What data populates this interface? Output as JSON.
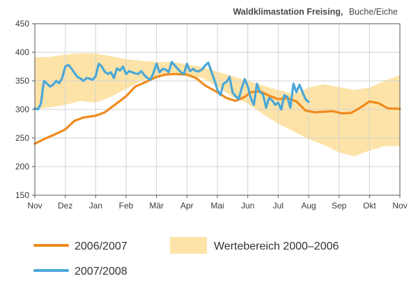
{
  "chart_data": {
    "type": "line",
    "title": "Waldklimastation Freising,",
    "subtitle": "Buche/Eiche",
    "xlabel": "",
    "ylabel": "",
    "ylim": [
      150,
      450
    ],
    "yticks": [
      "150",
      "200",
      "250",
      "300",
      "350",
      "400",
      "450"
    ],
    "xticks": [
      "Nov",
      "Dez",
      "Jan",
      "Feb",
      "Mär",
      "Apr",
      "Mai",
      "Jun",
      "Jul",
      "Aug",
      "Sep",
      "Okt",
      "Nov"
    ],
    "grid": true,
    "legend_position": "bottom",
    "colors": {
      "series_2006": "#f08a1c",
      "series_2007": "#4aa7d8",
      "band": "#fde3a7",
      "grid": "#d2d2d2",
      "axis": "#555555"
    },
    "band": {
      "name": "Wertebereich 2000–2006",
      "x": [
        0,
        0.5,
        1,
        1.5,
        2,
        2.5,
        3,
        3.5,
        4,
        4.5,
        5,
        5.5,
        6,
        6.5,
        7,
        7.5,
        8,
        8.5,
        9,
        9.5,
        10,
        10.5,
        11,
        11.5,
        12
      ],
      "upper": [
        391,
        392,
        396,
        398,
        398,
        393,
        388,
        385,
        383,
        383,
        379,
        374,
        366,
        358,
        350,
        342,
        334,
        327,
        338,
        344,
        339,
        334,
        338,
        350,
        360
      ],
      "lower": [
        300,
        304,
        308,
        315,
        312,
        322,
        336,
        350,
        358,
        362,
        360,
        355,
        340,
        322,
        310,
        292,
        275,
        262,
        248,
        238,
        225,
        218,
        228,
        236,
        236
      ]
    },
    "series": [
      {
        "name": "2006/2007",
        "x": [
          0,
          0.3,
          0.6,
          1.0,
          1.3,
          1.6,
          2.0,
          2.3,
          2.6,
          3.0,
          3.3,
          3.6,
          4.0,
          4.3,
          4.6,
          5.0,
          5.3,
          5.6,
          6.0,
          6.3,
          6.6,
          6.9,
          7.1,
          7.4,
          7.7,
          8.0,
          8.3,
          8.6,
          8.9,
          9.2,
          9.5,
          9.8,
          10.1,
          10.4,
          10.7,
          11.0,
          11.3,
          11.6,
          12.0
        ],
        "values": [
          240,
          248,
          255,
          265,
          280,
          286,
          289,
          295,
          307,
          323,
          340,
          347,
          357,
          361,
          362,
          361,
          355,
          342,
          330,
          320,
          315,
          322,
          330,
          332,
          324,
          318,
          320,
          314,
          298,
          295,
          296,
          297,
          293,
          294,
          303,
          314,
          311,
          302,
          301
        ]
      },
      {
        "name": "2007/2008",
        "x": [
          0,
          0.1,
          0.2,
          0.3,
          0.4,
          0.5,
          0.6,
          0.7,
          0.8,
          0.9,
          1.0,
          1.1,
          1.2,
          1.3,
          1.4,
          1.5,
          1.6,
          1.7,
          1.8,
          1.9,
          2.0,
          2.1,
          2.2,
          2.3,
          2.4,
          2.5,
          2.6,
          2.7,
          2.8,
          2.9,
          3.0,
          3.1,
          3.2,
          3.3,
          3.4,
          3.5,
          3.6,
          3.7,
          3.8,
          3.9,
          4.0,
          4.1,
          4.2,
          4.3,
          4.4,
          4.5,
          4.6,
          4.7,
          4.8,
          4.9,
          5.0,
          5.1,
          5.2,
          5.3,
          5.4,
          5.5,
          5.6,
          5.7,
          5.8,
          5.9,
          6.0,
          6.1,
          6.2,
          6.3,
          6.4,
          6.5,
          6.6,
          6.7,
          6.8,
          6.9,
          7.0,
          7.1,
          7.2,
          7.3,
          7.4,
          7.5,
          7.6,
          7.7,
          7.8,
          7.9,
          8.0,
          8.1,
          8.2,
          8.3,
          8.4,
          8.5,
          8.6,
          8.7,
          8.8,
          8.9,
          9.0
        ],
        "values": [
          302,
          300,
          310,
          350,
          345,
          340,
          343,
          350,
          346,
          355,
          375,
          378,
          372,
          364,
          357,
          354,
          350,
          355,
          354,
          352,
          358,
          380,
          375,
          366,
          362,
          365,
          355,
          372,
          368,
          375,
          362,
          367,
          365,
          363,
          362,
          367,
          360,
          355,
          352,
          364,
          380,
          365,
          371,
          370,
          365,
          383,
          377,
          371,
          365,
          362,
          380,
          367,
          371,
          367,
          367,
          370,
          377,
          382,
          367,
          352,
          335,
          325,
          345,
          348,
          357,
          330,
          323,
          318,
          337,
          353,
          340,
          320,
          308,
          345,
          330,
          327,
          303,
          320,
          316,
          308,
          312,
          300,
          325,
          322,
          303,
          345,
          330,
          343,
          330,
          318,
          313
        ]
      }
    ]
  }
}
